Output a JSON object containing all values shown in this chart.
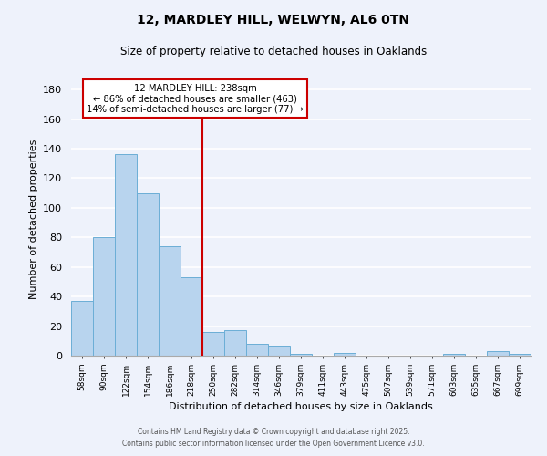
{
  "title": "12, MARDLEY HILL, WELWYN, AL6 0TN",
  "subtitle": "Size of property relative to detached houses in Oaklands",
  "xlabel": "Distribution of detached houses by size in Oaklands",
  "ylabel": "Number of detached properties",
  "bar_labels": [
    "58sqm",
    "90sqm",
    "122sqm",
    "154sqm",
    "186sqm",
    "218sqm",
    "250sqm",
    "282sqm",
    "314sqm",
    "346sqm",
    "379sqm",
    "411sqm",
    "443sqm",
    "475sqm",
    "507sqm",
    "539sqm",
    "571sqm",
    "603sqm",
    "635sqm",
    "667sqm",
    "699sqm"
  ],
  "bar_values": [
    37,
    80,
    136,
    110,
    74,
    53,
    16,
    17,
    8,
    7,
    1,
    0,
    2,
    0,
    0,
    0,
    0,
    1,
    0,
    3,
    1
  ],
  "bar_color": "#b8d4ee",
  "bar_edge_color": "#6baed6",
  "background_color": "#eef2fb",
  "grid_color": "#ffffff",
  "vline_x": 5.5,
  "vline_color": "#cc0000",
  "annotation_line1": "12 MARDLEY HILL: 238sqm",
  "annotation_line2": "← 86% of detached houses are smaller (463)",
  "annotation_line3": "14% of semi-detached houses are larger (77) →",
  "annotation_box_color": "#ffffff",
  "annotation_box_edge": "#cc0000",
  "ylim": [
    0,
    185
  ],
  "footer_line1": "Contains HM Land Registry data © Crown copyright and database right 2025.",
  "footer_line2": "Contains public sector information licensed under the Open Government Licence v3.0."
}
